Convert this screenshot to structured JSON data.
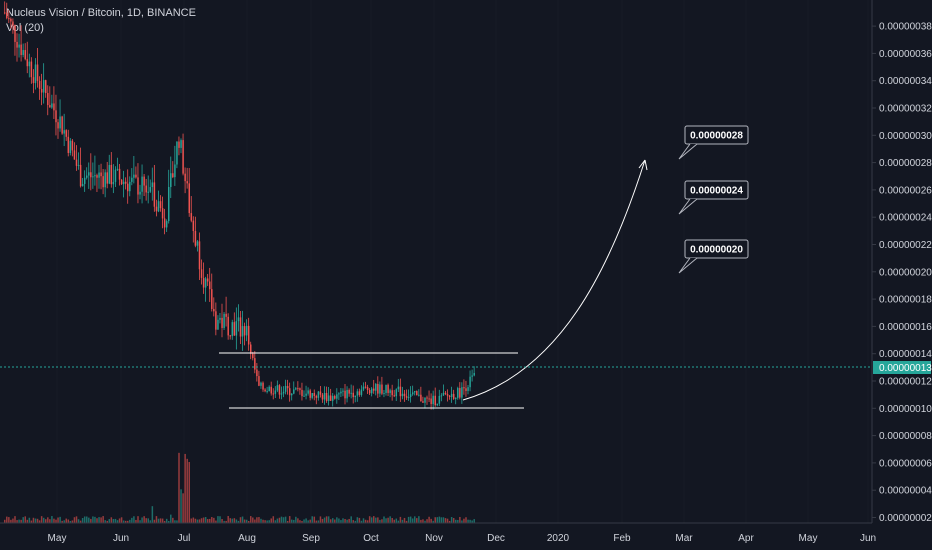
{
  "header": {
    "symbol": "Nucleus Vision / Bitcoin, 1D, BINANCE",
    "indicator": "Vol (20)"
  },
  "chart_data": {
    "type": "candlestick",
    "title": "Nucleus Vision / Bitcoin, 1D, BINANCE",
    "ylim": [
      1.8e-08,
      3.9e-08
    ],
    "y_ticks": [
      "0.00000038",
      "0.00000036",
      "0.00000034",
      "0.00000032",
      "0.00000030",
      "0.00000028",
      "0.00000026",
      "0.00000024",
      "0.00000022",
      "0.00000020",
      "0.00000018",
      "0.00000016",
      "0.00000014",
      "0.00000012",
      "0.00000010",
      "0.00000008",
      "0.00000006",
      "0.00000004",
      "0.00000002"
    ],
    "x_ticks": [
      "May",
      "Jun",
      "Jul",
      "Aug",
      "Sep",
      "Oct",
      "Nov",
      "Dec",
      "2020",
      "Feb",
      "Mar",
      "Apr",
      "May",
      "Jun"
    ],
    "last_price": "0.00000013",
    "annotations": [
      "0.00000028",
      "0.00000024",
      "0.00000020"
    ],
    "support": 1e-07,
    "resistance": 1.4e-07,
    "colors": {
      "up": "#26a69a",
      "down": "#ef5350",
      "background": "#131722",
      "grid": "#2a2e39",
      "line": "#ffffff"
    }
  }
}
